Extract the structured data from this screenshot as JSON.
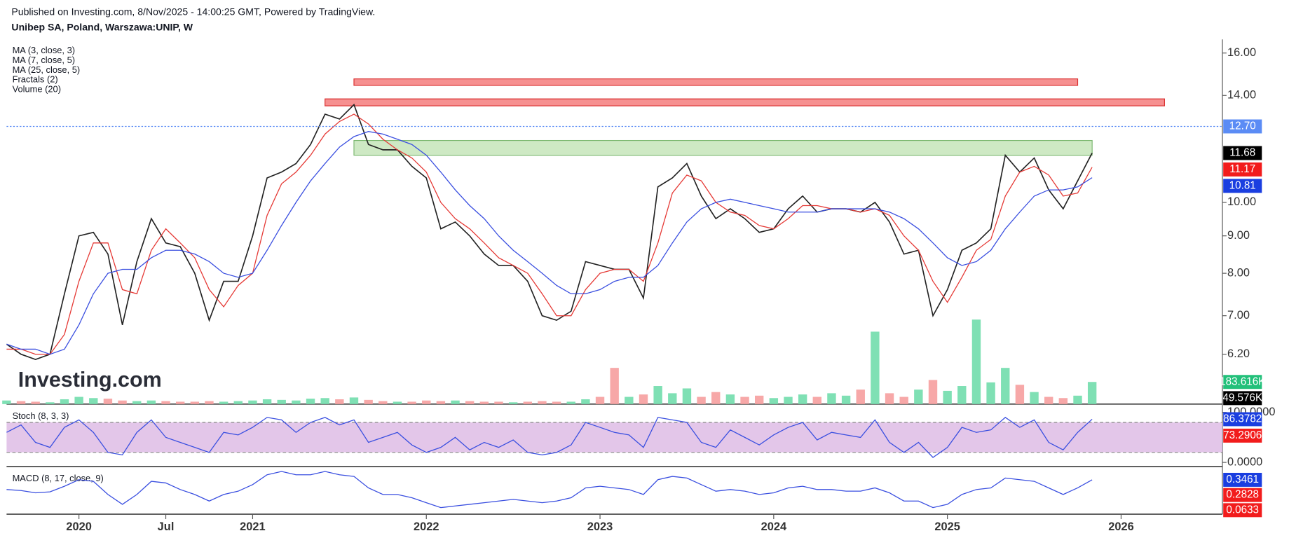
{
  "header": {
    "published": "Published on Investing.com, 8/Nov/2025 - 14:00:25 GMT, Powered by TradingView.",
    "symbol": "Unibep SA, Poland, Warszawa:UNIP, W"
  },
  "chart_data": {
    "type": "line",
    "log_scale": true,
    "watermark": "Investing.com",
    "x": [
      "2019-08",
      "2019-09",
      "2019-10",
      "2019-11",
      "2019-12",
      "2020-01",
      "2020-02",
      "2020-03",
      "2020-04",
      "2020-05",
      "2020-06",
      "2020-07",
      "2020-08",
      "2020-09",
      "2020-10",
      "2020-11",
      "2020-12",
      "2021-01",
      "2021-02",
      "2021-03",
      "2021-04",
      "2021-05",
      "2021-06",
      "2021-07",
      "2021-08",
      "2021-09",
      "2021-10",
      "2021-11",
      "2021-12",
      "2022-01",
      "2022-02",
      "2022-03",
      "2022-04",
      "2022-05",
      "2022-06",
      "2022-07",
      "2022-08",
      "2022-09",
      "2022-10",
      "2022-11",
      "2022-12",
      "2023-01",
      "2023-02",
      "2023-03",
      "2023-04",
      "2023-05",
      "2023-06",
      "2023-07",
      "2023-08",
      "2023-09",
      "2023-10",
      "2023-11",
      "2023-12",
      "2024-01",
      "2024-02",
      "2024-03",
      "2024-04",
      "2024-05",
      "2024-06",
      "2024-07",
      "2024-08",
      "2024-09",
      "2024-10",
      "2024-11",
      "2024-12",
      "2025-01",
      "2025-02",
      "2025-03",
      "2025-04",
      "2025-05",
      "2025-06",
      "2025-07",
      "2025-08",
      "2025-09",
      "2025-10",
      "2025-11"
    ],
    "series": [
      {
        "name": "MA (3, close, 3)",
        "color": "#222222",
        "values": [
          6.4,
          6.2,
          6.1,
          6.2,
          7.5,
          9.0,
          9.1,
          8.5,
          6.8,
          8.3,
          9.5,
          8.8,
          8.7,
          8.0,
          6.9,
          7.8,
          7.8,
          9.0,
          10.8,
          11.0,
          11.3,
          12.0,
          13.2,
          13.0,
          13.6,
          12.0,
          11.8,
          11.8,
          11.2,
          10.8,
          9.2,
          9.4,
          9.0,
          8.5,
          8.2,
          8.2,
          7.8,
          7.0,
          6.9,
          7.1,
          8.3,
          8.2,
          8.1,
          8.1,
          7.4,
          10.5,
          10.8,
          11.3,
          10.2,
          9.5,
          9.8,
          9.5,
          9.1,
          9.2,
          9.8,
          10.2,
          9.7,
          9.8,
          9.8,
          9.7,
          10.0,
          9.4,
          8.5,
          8.6,
          7.0,
          7.6,
          8.6,
          8.8,
          9.2,
          11.6,
          11.0,
          11.5,
          10.4,
          9.8,
          10.7,
          11.68
        ]
      },
      {
        "name": "MA (7, close, 5)",
        "color": "#e53935",
        "values": [
          6.3,
          6.3,
          6.2,
          6.2,
          6.6,
          7.8,
          8.8,
          8.8,
          7.6,
          7.5,
          8.6,
          9.2,
          8.8,
          8.4,
          7.6,
          7.2,
          7.7,
          8.0,
          9.6,
          10.6,
          11.0,
          11.6,
          12.4,
          12.9,
          13.2,
          12.8,
          12.2,
          11.8,
          11.5,
          11.0,
          10.0,
          9.5,
          9.2,
          8.8,
          8.4,
          8.2,
          8.0,
          7.5,
          7.0,
          7.0,
          7.6,
          8.0,
          8.1,
          8.1,
          7.8,
          8.8,
          10.3,
          10.9,
          10.7,
          10.0,
          9.7,
          9.6,
          9.3,
          9.2,
          9.5,
          9.9,
          9.9,
          9.8,
          9.8,
          9.7,
          9.8,
          9.6,
          9.0,
          8.6,
          7.8,
          7.3,
          7.9,
          8.6,
          8.9,
          10.2,
          11.0,
          11.2,
          10.9,
          10.2,
          10.3,
          11.17
        ]
      },
      {
        "name": "MA (25, close, 5)",
        "color": "#3a4fe0",
        "values": [
          6.4,
          6.3,
          6.3,
          6.2,
          6.3,
          6.8,
          7.5,
          8.0,
          8.1,
          8.1,
          8.4,
          8.6,
          8.6,
          8.5,
          8.3,
          8.0,
          7.9,
          8.0,
          8.6,
          9.3,
          10.0,
          10.7,
          11.3,
          11.9,
          12.3,
          12.5,
          12.4,
          12.2,
          12.0,
          11.6,
          11.0,
          10.4,
          9.9,
          9.5,
          9.0,
          8.6,
          8.3,
          8.0,
          7.7,
          7.5,
          7.5,
          7.6,
          7.8,
          7.9,
          7.9,
          8.2,
          8.8,
          9.4,
          9.8,
          10.0,
          10.1,
          10.0,
          9.9,
          9.8,
          9.7,
          9.7,
          9.7,
          9.8,
          9.8,
          9.8,
          9.8,
          9.7,
          9.5,
          9.2,
          8.8,
          8.4,
          8.2,
          8.3,
          8.6,
          9.2,
          9.7,
          10.2,
          10.4,
          10.4,
          10.5,
          10.81
        ]
      }
    ],
    "indicators": [
      "Fractals (2)"
    ],
    "volume": {
      "name": "Volume (20)",
      "up_color": "#7fe0b4",
      "down_color": "#f7a8a8",
      "ylim": [
        0,
        3020000
      ],
      "values": [
        30000,
        25000,
        20000,
        15000,
        40000,
        60000,
        50000,
        45000,
        30000,
        25000,
        30000,
        25000,
        20000,
        20000,
        25000,
        20000,
        25000,
        30000,
        40000,
        35000,
        30000,
        45000,
        50000,
        40000,
        55000,
        35000,
        25000,
        20000,
        20000,
        30000,
        25000,
        30000,
        25000,
        20000,
        20000,
        15000,
        20000,
        25000,
        20000,
        20000,
        40000,
        60000,
        300000,
        60000,
        80000,
        150000,
        90000,
        130000,
        60000,
        100000,
        80000,
        60000,
        70000,
        50000,
        60000,
        80000,
        60000,
        90000,
        70000,
        120000,
        600000,
        90000,
        60000,
        120000,
        200000,
        110000,
        150000,
        700000,
        180000,
        300000,
        160000,
        100000,
        60000,
        50000,
        70000,
        183616
      ],
      "last_labels": [
        {
          "value": 183616,
          "label": "183.616K",
          "color": "#22c07a"
        },
        {
          "value": 49576,
          "label": "49.576K",
          "color": "#000000"
        }
      ]
    },
    "xlim": [
      "2019-08",
      "2026-08"
    ],
    "xticks": [
      {
        "value": "2020-01",
        "label": "2020"
      },
      {
        "value": "2020-07",
        "label": "Jul"
      },
      {
        "value": "2021-01",
        "label": "2021"
      },
      {
        "value": "2022-01",
        "label": "2022"
      },
      {
        "value": "2023-01",
        "label": "2023"
      },
      {
        "value": "2024-01",
        "label": "2024"
      },
      {
        "value": "2025-01",
        "label": "2025"
      },
      {
        "value": "2026-01",
        "label": "2026"
      }
    ],
    "ylim": [
      5.3,
      16.7
    ],
    "yticks": [
      {
        "value": 16,
        "label": "16.00"
      },
      {
        "value": 14,
        "label": "14.00"
      },
      {
        "value": 10,
        "label": "10.00"
      },
      {
        "value": 9,
        "label": "9.00"
      },
      {
        "value": 8,
        "label": "8.00"
      },
      {
        "value": 7,
        "label": "7.00"
      },
      {
        "value": 6.2,
        "label": "6.20"
      }
    ],
    "zones": [
      {
        "from": "2021-08",
        "to": "2025-10",
        "low": 14.45,
        "high": 14.75,
        "color": "#f47c7c",
        "stroke": "#d93030"
      },
      {
        "from": "2021-06",
        "to": "2026-04",
        "low": 13.55,
        "high": 13.85,
        "color": "#f47c7c",
        "stroke": "#d93030"
      },
      {
        "from": "2021-08",
        "to": "2025-11",
        "low": 11.6,
        "high": 12.15,
        "color": "#c6e5ba",
        "stroke": "#7cb870"
      }
    ],
    "price_labels": [
      {
        "value": 12.7,
        "label": "12.70",
        "color": "#5b8cf5",
        "dashed_line": true
      },
      {
        "value": 11.68,
        "label": "11.68",
        "color": "#000000"
      },
      {
        "value": 11.17,
        "label": "11.17",
        "color": "#f21c1c"
      },
      {
        "value": 10.81,
        "label": "10.81",
        "color": "#1a3ee0"
      }
    ],
    "stoch": {
      "title": "Stoch (8, 3, 3)",
      "color": "#3a4fe0",
      "band_color": "#dcb8e4",
      "bands": [
        20,
        80
      ],
      "ylim": [
        -5,
        110
      ],
      "yticks": [
        {
          "value": 100,
          "label": "100.0000"
        },
        {
          "value": 0,
          "label": "0.0000"
        }
      ],
      "values": [
        60,
        75,
        40,
        30,
        70,
        85,
        60,
        20,
        15,
        60,
        85,
        50,
        40,
        30,
        20,
        60,
        55,
        70,
        90,
        85,
        60,
        80,
        90,
        75,
        85,
        40,
        50,
        60,
        35,
        20,
        30,
        50,
        25,
        40,
        30,
        45,
        20,
        15,
        20,
        35,
        80,
        70,
        60,
        55,
        30,
        90,
        85,
        80,
        40,
        30,
        65,
        50,
        35,
        55,
        70,
        80,
        45,
        60,
        55,
        50,
        85,
        40,
        20,
        40,
        10,
        30,
        70,
        60,
        65,
        90,
        70,
        85,
        40,
        25,
        60,
        86.3782
      ],
      "last_labels": [
        {
          "value": 86.3782,
          "label": "86.3782",
          "color": "#1a3ee0"
        },
        {
          "value": 73.2906,
          "label": "73.2906",
          "color": "#f21c1c"
        }
      ]
    },
    "macd": {
      "title": "MACD (8, 17, close, 9)",
      "color": "#3a4fe0",
      "ylim": [
        -0.7,
        0.7
      ],
      "values": [
        0.05,
        0.02,
        -0.05,
        -0.02,
        0.15,
        0.35,
        0.3,
        -0.1,
        -0.4,
        -0.1,
        0.3,
        0.25,
        0.05,
        -0.1,
        -0.3,
        -0.1,
        0.0,
        0.2,
        0.5,
        0.6,
        0.5,
        0.5,
        0.6,
        0.5,
        0.45,
        0.1,
        -0.1,
        -0.1,
        -0.2,
        -0.35,
        -0.5,
        -0.45,
        -0.4,
        -0.35,
        -0.3,
        -0.25,
        -0.3,
        -0.35,
        -0.3,
        -0.2,
        0.1,
        0.15,
        0.1,
        0.05,
        -0.1,
        0.35,
        0.45,
        0.4,
        0.2,
        0.0,
        0.05,
        0.0,
        -0.1,
        -0.05,
        0.1,
        0.15,
        0.05,
        0.05,
        0.0,
        0.0,
        0.1,
        -0.05,
        -0.3,
        -0.3,
        -0.5,
        -0.4,
        -0.1,
        0.05,
        0.1,
        0.4,
        0.35,
        0.3,
        0.1,
        -0.1,
        0.1,
        0.3461
      ],
      "last_labels": [
        {
          "value": 0.3461,
          "label": "0.3461",
          "color": "#1a3ee0"
        },
        {
          "value": 0.2828,
          "label": "0.2828",
          "color": "#f21c1c"
        },
        {
          "value": 0.0633,
          "label": "0.0633",
          "color": "#f21c1c"
        }
      ]
    }
  }
}
